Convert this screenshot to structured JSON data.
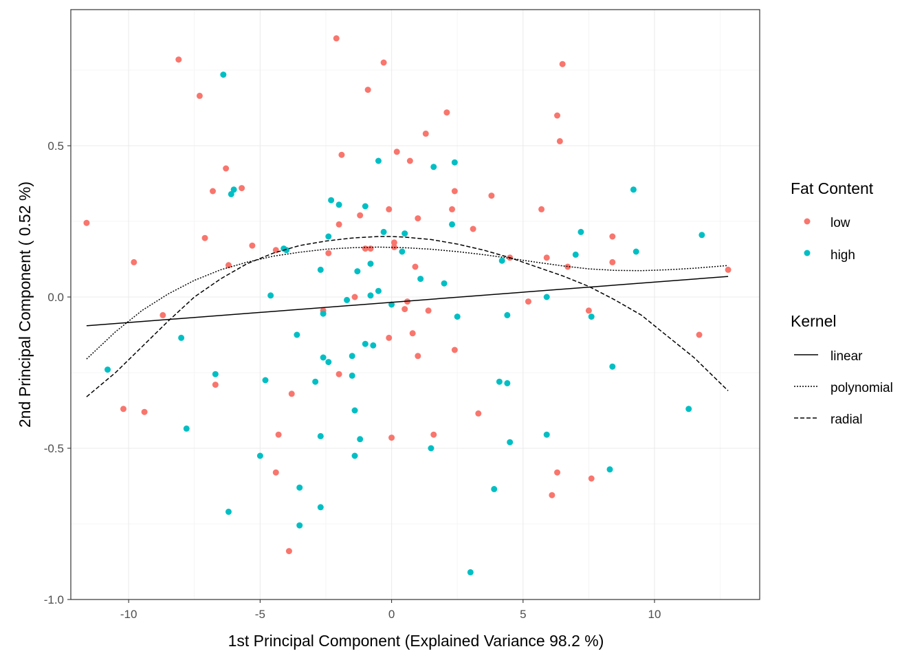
{
  "chart_data": {
    "type": "scatter",
    "xlabel": "1st Principal Component (Explained Variance 98.2 %)",
    "ylabel": "2nd Principal Component ( 0.52 %)",
    "xlim": [
      -12.2,
      14.0
    ],
    "ylim": [
      -1.0,
      0.95
    ],
    "x_ticks": [
      -10,
      -5,
      0,
      5,
      10
    ],
    "x_tick_labels": [
      "-10",
      "-5",
      "0",
      "5",
      "10"
    ],
    "y_ticks": [
      -1.0,
      -0.5,
      0.0,
      0.5
    ],
    "y_tick_labels": [
      "-1.0",
      "-0.5",
      "0.0",
      "0.5"
    ],
    "grid": true,
    "legend_placement": "right",
    "legends": [
      {
        "title": "Fat Content",
        "entries": [
          {
            "label": "low",
            "color": "#F8766D"
          },
          {
            "label": "high",
            "color": "#00BFC4"
          }
        ]
      },
      {
        "title": "Kernel",
        "entries": [
          {
            "label": "linear",
            "linetype": "solid"
          },
          {
            "label": "polynomial",
            "linetype": "dotted"
          },
          {
            "label": "radial",
            "linetype": "dashed"
          }
        ]
      }
    ],
    "series": [
      {
        "name": "low",
        "color": "#F8766D",
        "points": [
          [
            -11.6,
            0.245
          ],
          [
            -10.2,
            -0.37
          ],
          [
            -9.8,
            0.115
          ],
          [
            -9.4,
            -0.38
          ],
          [
            -8.7,
            -0.06
          ],
          [
            -8.1,
            0.785
          ],
          [
            -7.3,
            0.665
          ],
          [
            -7.1,
            0.195
          ],
          [
            -6.8,
            0.35
          ],
          [
            -6.7,
            -0.29
          ],
          [
            -6.3,
            0.425
          ],
          [
            -6.2,
            0.105
          ],
          [
            -5.7,
            0.36
          ],
          [
            -5.3,
            0.17
          ],
          [
            -4.4,
            0.155
          ],
          [
            -4.4,
            -0.58
          ],
          [
            -4.3,
            -0.455
          ],
          [
            -3.9,
            -0.84
          ],
          [
            -3.8,
            -0.32
          ],
          [
            -2.4,
            0.145
          ],
          [
            -2.6,
            -0.045
          ],
          [
            -2.1,
            0.855
          ],
          [
            -2.0,
            0.24
          ],
          [
            -2.0,
            -0.255
          ],
          [
            -1.9,
            0.47
          ],
          [
            -1.4,
            0.0
          ],
          [
            -1.2,
            0.27
          ],
          [
            -1.0,
            0.16
          ],
          [
            -0.9,
            0.685
          ],
          [
            -0.8,
            0.16
          ],
          [
            -0.3,
            0.775
          ],
          [
            -0.1,
            0.29
          ],
          [
            0.1,
            0.18
          ],
          [
            0.1,
            0.165
          ],
          [
            0.2,
            0.48
          ],
          [
            0.5,
            -0.04
          ],
          [
            0.6,
            -0.015
          ],
          [
            0.7,
            0.45
          ],
          [
            0.8,
            -0.12
          ],
          [
            0.9,
            0.1
          ],
          [
            1.0,
            0.26
          ],
          [
            1.0,
            -0.195
          ],
          [
            1.3,
            0.54
          ],
          [
            1.4,
            -0.045
          ],
          [
            1.6,
            -0.455
          ],
          [
            2.1,
            0.61
          ],
          [
            2.3,
            0.29
          ],
          [
            2.4,
            0.35
          ],
          [
            2.4,
            -0.175
          ],
          [
            3.1,
            0.225
          ],
          [
            3.3,
            -0.385
          ],
          [
            3.8,
            0.335
          ],
          [
            4.5,
            0.13
          ],
          [
            5.2,
            -0.015
          ],
          [
            5.7,
            0.29
          ],
          [
            5.9,
            0.13
          ],
          [
            6.3,
            0.6
          ],
          [
            6.4,
            0.515
          ],
          [
            6.5,
            0.77
          ],
          [
            6.7,
            0.1
          ],
          [
            7.5,
            -0.045
          ],
          [
            7.6,
            -0.6
          ],
          [
            8.4,
            0.2
          ],
          [
            8.4,
            0.115
          ],
          [
            11.7,
            -0.125
          ],
          [
            12.8,
            0.09
          ],
          [
            6.3,
            -0.58
          ],
          [
            6.1,
            -0.655
          ],
          [
            -0.1,
            -0.135
          ],
          [
            0.0,
            -0.465
          ]
        ]
      },
      {
        "name": "high",
        "color": "#00BFC4",
        "points": [
          [
            -10.8,
            -0.24
          ],
          [
            -8.0,
            -0.135
          ],
          [
            -7.8,
            -0.435
          ],
          [
            -6.7,
            -0.255
          ],
          [
            -6.4,
            0.735
          ],
          [
            -6.2,
            -0.71
          ],
          [
            -6.1,
            0.34
          ],
          [
            -6.0,
            0.355
          ],
          [
            -5.0,
            -0.525
          ],
          [
            -4.8,
            -0.275
          ],
          [
            -4.6,
            0.005
          ],
          [
            -4.1,
            0.16
          ],
          [
            -4.0,
            0.155
          ],
          [
            -3.6,
            -0.125
          ],
          [
            -3.5,
            -0.63
          ],
          [
            -3.5,
            -0.755
          ],
          [
            -2.9,
            -0.28
          ],
          [
            -2.7,
            0.09
          ],
          [
            -2.7,
            -0.46
          ],
          [
            -2.7,
            -0.695
          ],
          [
            -2.6,
            -0.2
          ],
          [
            -2.6,
            -0.055
          ],
          [
            -2.4,
            0.2
          ],
          [
            -2.4,
            -0.215
          ],
          [
            -2.3,
            0.32
          ],
          [
            -2.0,
            0.305
          ],
          [
            -1.7,
            -0.01
          ],
          [
            -1.5,
            -0.195
          ],
          [
            -1.5,
            -0.26
          ],
          [
            -1.4,
            -0.375
          ],
          [
            -1.4,
            -0.525
          ],
          [
            -1.3,
            0.085
          ],
          [
            -1.2,
            -0.47
          ],
          [
            -1.0,
            0.3
          ],
          [
            -1.0,
            -0.155
          ],
          [
            -0.8,
            0.11
          ],
          [
            -0.8,
            0.005
          ],
          [
            -0.7,
            -0.16
          ],
          [
            -0.5,
            0.45
          ],
          [
            -0.5,
            0.02
          ],
          [
            -0.3,
            0.215
          ],
          [
            0.0,
            -0.025
          ],
          [
            0.4,
            0.15
          ],
          [
            0.5,
            0.21
          ],
          [
            1.1,
            0.06
          ],
          [
            1.5,
            -0.5
          ],
          [
            1.6,
            0.43
          ],
          [
            2.0,
            0.045
          ],
          [
            2.3,
            0.24
          ],
          [
            2.4,
            0.445
          ],
          [
            2.5,
            -0.065
          ],
          [
            3.0,
            -0.91
          ],
          [
            3.9,
            -0.635
          ],
          [
            4.1,
            -0.28
          ],
          [
            4.2,
            0.12
          ],
          [
            4.4,
            -0.06
          ],
          [
            4.4,
            -0.285
          ],
          [
            4.5,
            -0.48
          ],
          [
            5.9,
            0.0
          ],
          [
            5.9,
            -0.455
          ],
          [
            7.0,
            0.14
          ],
          [
            7.2,
            0.215
          ],
          [
            7.6,
            -0.065
          ],
          [
            8.3,
            -0.57
          ],
          [
            8.4,
            -0.23
          ],
          [
            9.2,
            0.355
          ],
          [
            9.3,
            0.15
          ],
          [
            11.3,
            -0.37
          ],
          [
            11.8,
            0.205
          ]
        ]
      }
    ],
    "curves": [
      {
        "name": "linear",
        "linetype": "solid",
        "points": [
          [
            -11.6,
            -0.095
          ],
          [
            12.8,
            0.068
          ]
        ]
      },
      {
        "name": "polynomial",
        "linetype": "dotted",
        "points": [
          [
            -11.6,
            -0.205
          ],
          [
            -10.5,
            -0.115
          ],
          [
            -9.5,
            -0.045
          ],
          [
            -8.5,
            0.01
          ],
          [
            -7.5,
            0.055
          ],
          [
            -6.5,
            0.09
          ],
          [
            -5.5,
            0.115
          ],
          [
            -4.5,
            0.135
          ],
          [
            -3.5,
            0.148
          ],
          [
            -2.5,
            0.158
          ],
          [
            -1.5,
            0.163
          ],
          [
            -0.5,
            0.165
          ],
          [
            0.5,
            0.163
          ],
          [
            1.5,
            0.158
          ],
          [
            2.5,
            0.15
          ],
          [
            3.5,
            0.14
          ],
          [
            4.5,
            0.128
          ],
          [
            5.5,
            0.115
          ],
          [
            6.5,
            0.103
          ],
          [
            7.5,
            0.093
          ],
          [
            8.5,
            0.088
          ],
          [
            9.5,
            0.087
          ],
          [
            10.5,
            0.09
          ],
          [
            11.5,
            0.095
          ],
          [
            12.8,
            0.104
          ]
        ]
      },
      {
        "name": "radial",
        "linetype": "dashed",
        "points": [
          [
            -11.6,
            -0.33
          ],
          [
            -10.5,
            -0.25
          ],
          [
            -9.5,
            -0.165
          ],
          [
            -8.5,
            -0.08
          ],
          [
            -7.5,
            0.0
          ],
          [
            -6.5,
            0.06
          ],
          [
            -5.5,
            0.11
          ],
          [
            -4.5,
            0.145
          ],
          [
            -3.5,
            0.17
          ],
          [
            -2.5,
            0.185
          ],
          [
            -1.5,
            0.195
          ],
          [
            -0.5,
            0.2
          ],
          [
            0.0,
            0.2
          ],
          [
            0.5,
            0.198
          ],
          [
            1.5,
            0.19
          ],
          [
            2.5,
            0.175
          ],
          [
            3.5,
            0.155
          ],
          [
            4.5,
            0.13
          ],
          [
            5.5,
            0.1
          ],
          [
            6.5,
            0.07
          ],
          [
            7.5,
            0.035
          ],
          [
            8.5,
            -0.01
          ],
          [
            9.5,
            -0.06
          ],
          [
            10.5,
            -0.13
          ],
          [
            11.5,
            -0.2
          ],
          [
            12.8,
            -0.31
          ]
        ]
      }
    ]
  }
}
